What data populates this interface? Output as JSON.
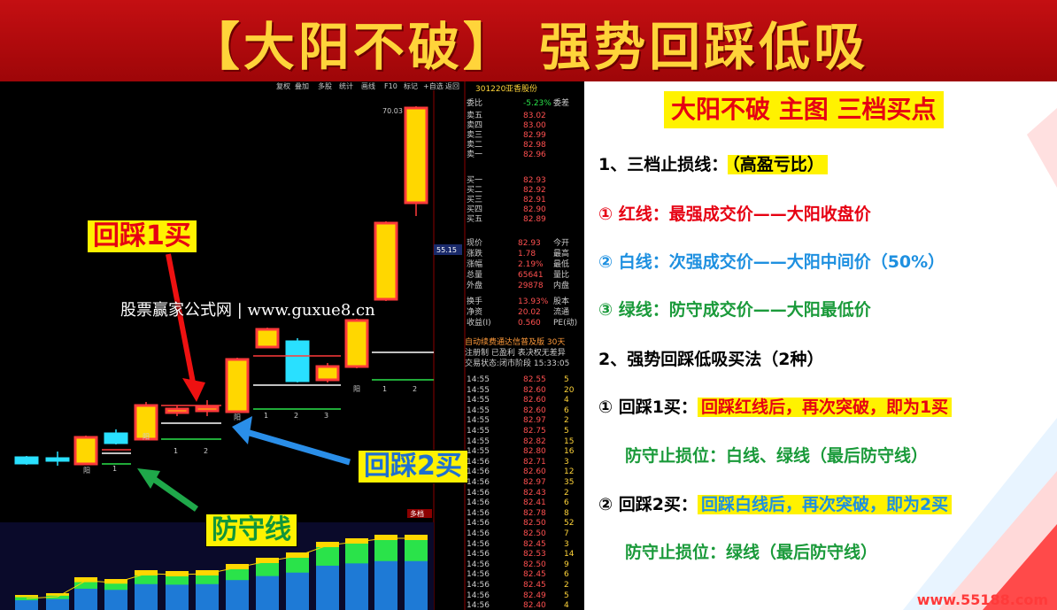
{
  "banner": {
    "title": "【大阳不破】 强势回踩低吸"
  },
  "toolbar": {
    "items": [
      "复权",
      "叠加",
      "多股",
      "统计",
      "画线",
      "F10",
      "标记",
      "+自选",
      "返回"
    ]
  },
  "stock": {
    "code": "301220",
    "name": "亚香股份",
    "ratio_label": "委比",
    "ratio_value": "-5.23%",
    "diff_label": "委差"
  },
  "chart": {
    "top_price": "70.03",
    "axis_price": "55.15",
    "candle_labels": [
      "阳",
      "1",
      "阳",
      "1",
      "2",
      "阳",
      "1",
      "2",
      "3",
      "阳",
      "1",
      "2"
    ],
    "volume_tag": "多档"
  },
  "orderbook": {
    "sell": [
      {
        "label": "卖五",
        "value": "83.02"
      },
      {
        "label": "卖四",
        "value": "83.00"
      },
      {
        "label": "卖三",
        "value": "82.99"
      },
      {
        "label": "卖二",
        "value": "82.98"
      },
      {
        "label": "卖一",
        "value": "82.96"
      }
    ],
    "buy": [
      {
        "label": "买一",
        "value": "82.93"
      },
      {
        "label": "买二",
        "value": "82.92"
      },
      {
        "label": "买三",
        "value": "82.91"
      },
      {
        "label": "买四",
        "value": "82.90"
      },
      {
        "label": "买五",
        "value": "82.89"
      }
    ]
  },
  "stats": [
    {
      "label": "现价",
      "value": "82.93",
      "extra": "今开"
    },
    {
      "label": "涨跌",
      "value": "1.78",
      "extra": "最高"
    },
    {
      "label": "涨幅",
      "value": "2.19%",
      "extra": "最低"
    },
    {
      "label": "总量",
      "value": "65641",
      "extra": "量比"
    },
    {
      "label": "外盘",
      "value": "29878",
      "extra": "内盘"
    },
    {
      "label": "换手",
      "value": "13.93%",
      "extra": "股本"
    },
    {
      "label": "净资",
      "value": "20.02",
      "extra": "流通"
    },
    {
      "label": "收益(I)",
      "value": "0.560",
      "extra": "PE(动)"
    }
  ],
  "notice": {
    "line1": "自动续费通达信普及版 30天",
    "line2": "注册制 已盈利 表决权无差异",
    "line3": "交易状态:闭市阶段 15:33:05"
  },
  "ticks": [
    {
      "t": "14:55",
      "p": "82.55",
      "v": "5"
    },
    {
      "t": "14:55",
      "p": "82.60",
      "v": "20"
    },
    {
      "t": "14:55",
      "p": "82.60",
      "v": "4"
    },
    {
      "t": "14:55",
      "p": "82.60",
      "v": "6"
    },
    {
      "t": "14:55",
      "p": "82.97",
      "v": "2"
    },
    {
      "t": "14:55",
      "p": "82.75",
      "v": "5"
    },
    {
      "t": "14:55",
      "p": "82.82",
      "v": "15"
    },
    {
      "t": "14:55",
      "p": "82.80",
      "v": "16"
    },
    {
      "t": "14:56",
      "p": "82.71",
      "v": "3"
    },
    {
      "t": "14:56",
      "p": "82.60",
      "v": "12"
    },
    {
      "t": "14:56",
      "p": "82.97",
      "v": "35"
    },
    {
      "t": "14:56",
      "p": "82.43",
      "v": "2"
    },
    {
      "t": "14:56",
      "p": "82.41",
      "v": "6"
    },
    {
      "t": "14:56",
      "p": "82.78",
      "v": "8"
    },
    {
      "t": "14:56",
      "p": "82.50",
      "v": "52"
    },
    {
      "t": "14:56",
      "p": "82.50",
      "v": "7"
    },
    {
      "t": "14:56",
      "p": "82.45",
      "v": "3"
    },
    {
      "t": "14:56",
      "p": "82.53",
      "v": "14"
    },
    {
      "t": "14:56",
      "p": "82.50",
      "v": "9"
    },
    {
      "t": "14:56",
      "p": "82.45",
      "v": "6"
    },
    {
      "t": "14:56",
      "p": "82.45",
      "v": "2"
    },
    {
      "t": "14:56",
      "p": "82.49",
      "v": "5"
    },
    {
      "t": "14:56",
      "p": "82.40",
      "v": "4"
    }
  ],
  "callouts": {
    "buy1": "回踩1买",
    "buy2": "回踩2买",
    "defense": "防守线"
  },
  "watermark": "股票赢家公式网 | www.guxue8.cn",
  "right": {
    "title": "大阳不破 主图 三档买点",
    "s1_heading": "1、三档止损线：",
    "s1_tag": "（高盈亏比）",
    "line_red": "① 红线：最强成交价——大阳收盘价",
    "line_white": "② 白线：次强成交价——大阳中间价（50%）",
    "line_green": "③ 绿线：防守成交价——大阳最低价",
    "s2_heading": "2、强势回踩低吸买法（2种）",
    "m1_prefix": "① 回踩1买：",
    "m1_text": "回踩红线后，再次突破，即为1买",
    "m1_stop": "防守止损位：白线、绿线（最后防守线）",
    "m2_prefix": "② 回踩2买：",
    "m2_text": "回踩白线后，再次突破，即为2买",
    "m2_stop": "防守止损位：绿线（最后防守线）"
  },
  "site": "www.55188.com",
  "colors": {
    "banner_red": "#c40f12",
    "title_yellow": "#ffd43a",
    "up_red": "#ff3a3a",
    "down_cyan": "#29e0ff",
    "highlight_yellow": "#fff200",
    "blue_text": "#1e90e0",
    "green_text": "#1a9a3a"
  }
}
